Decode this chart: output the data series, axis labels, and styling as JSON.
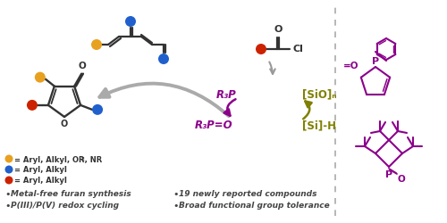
{
  "bg_color": "#ffffff",
  "orange_color": "#E8A020",
  "blue_color": "#2060CC",
  "red_color": "#CC2200",
  "purple_color": "#8B008B",
  "olive_color": "#808000",
  "gray_color": "#999999",
  "cc_color": "#333333",
  "bullet_text_left": [
    "Metal-free furan synthesis",
    "P(III)/P(V) redox cycling"
  ],
  "bullet_text_right": [
    "19 newly reported compounds",
    "Broad functional group tolerance"
  ],
  "r3p_label": "R₃P",
  "r3po_label": "R₃P=O",
  "sio_label": "[SiO]ₙ",
  "sih_label": "[Si]-H"
}
